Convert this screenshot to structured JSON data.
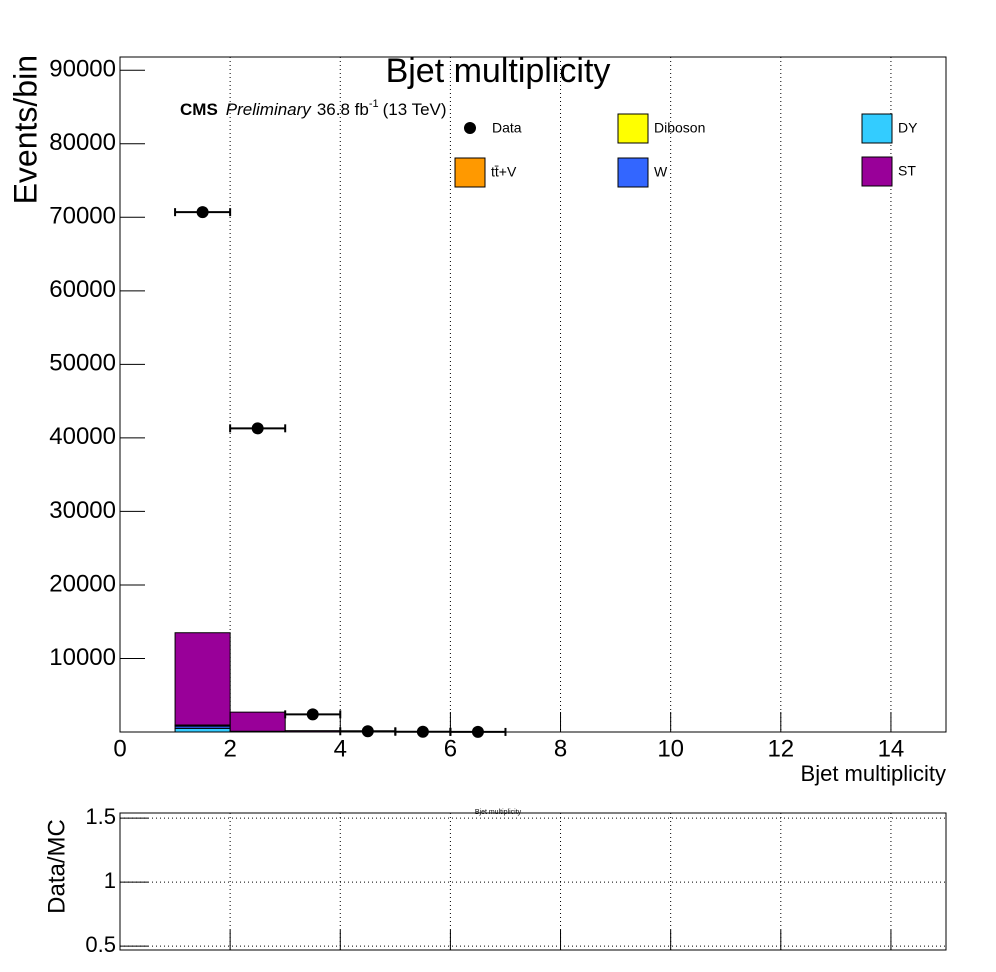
{
  "chart_data": [
    {
      "type": "stacked_histogram",
      "title": "Bjet multiplicity",
      "xlabel": "Bjet multiplicity",
      "ylabel": "Events/bin",
      "annotations": {
        "experiment": "CMS",
        "status": "Preliminary",
        "lumi": "36.8 fb",
        "lumi_exp": "-1",
        "energy": "(13 TeV)"
      },
      "xlim": [
        0,
        15
      ],
      "xticks": [
        0,
        2,
        4,
        6,
        8,
        10,
        12,
        14
      ],
      "ylim": [
        0,
        91800
      ],
      "yticks": [
        10000,
        20000,
        30000,
        40000,
        50000,
        60000,
        70000,
        80000,
        90000
      ],
      "grid": "x",
      "bins": [
        1,
        2,
        3,
        4,
        5,
        6,
        7
      ],
      "series": [
        {
          "name": "DY",
          "color": "#33ccff",
          "values": [
            500,
            30,
            5,
            1,
            0,
            0
          ]
        },
        {
          "name": "W",
          "color": "#3366ff",
          "values": [
            300,
            20,
            5,
            1,
            0,
            0
          ]
        },
        {
          "name": "tt̄+V",
          "color": "#ff9900",
          "values": [
            100,
            40,
            20,
            5,
            1,
            0
          ]
        },
        {
          "name": "Diboson",
          "color": "#ffff00",
          "values": [
            50,
            10,
            2,
            0,
            0,
            0
          ]
        },
        {
          "name": "ST",
          "color": "#990099",
          "values": [
            12550,
            2600,
            150,
            20,
            5,
            1
          ]
        }
      ],
      "points": {
        "name": "Data",
        "color": "#000000",
        "x": [
          1.5,
          2.5,
          3.5,
          4.5,
          5.5,
          6.5
        ],
        "xerr": [
          0.5,
          0.5,
          0.5,
          0.5,
          0.5,
          0.5
        ],
        "values": [
          70700,
          41300,
          2400,
          100,
          30,
          10
        ]
      }
    },
    {
      "type": "ratio",
      "title": "Bjet multiplicity",
      "ylabel": "Data/MC",
      "xlim": [
        0,
        15
      ],
      "xticks": [
        0,
        2,
        4,
        6,
        8,
        10,
        12,
        14
      ],
      "ylim": [
        0.47,
        1.54
      ],
      "yticks": [
        0.5,
        1,
        1.5
      ],
      "grid": "xy"
    }
  ]
}
